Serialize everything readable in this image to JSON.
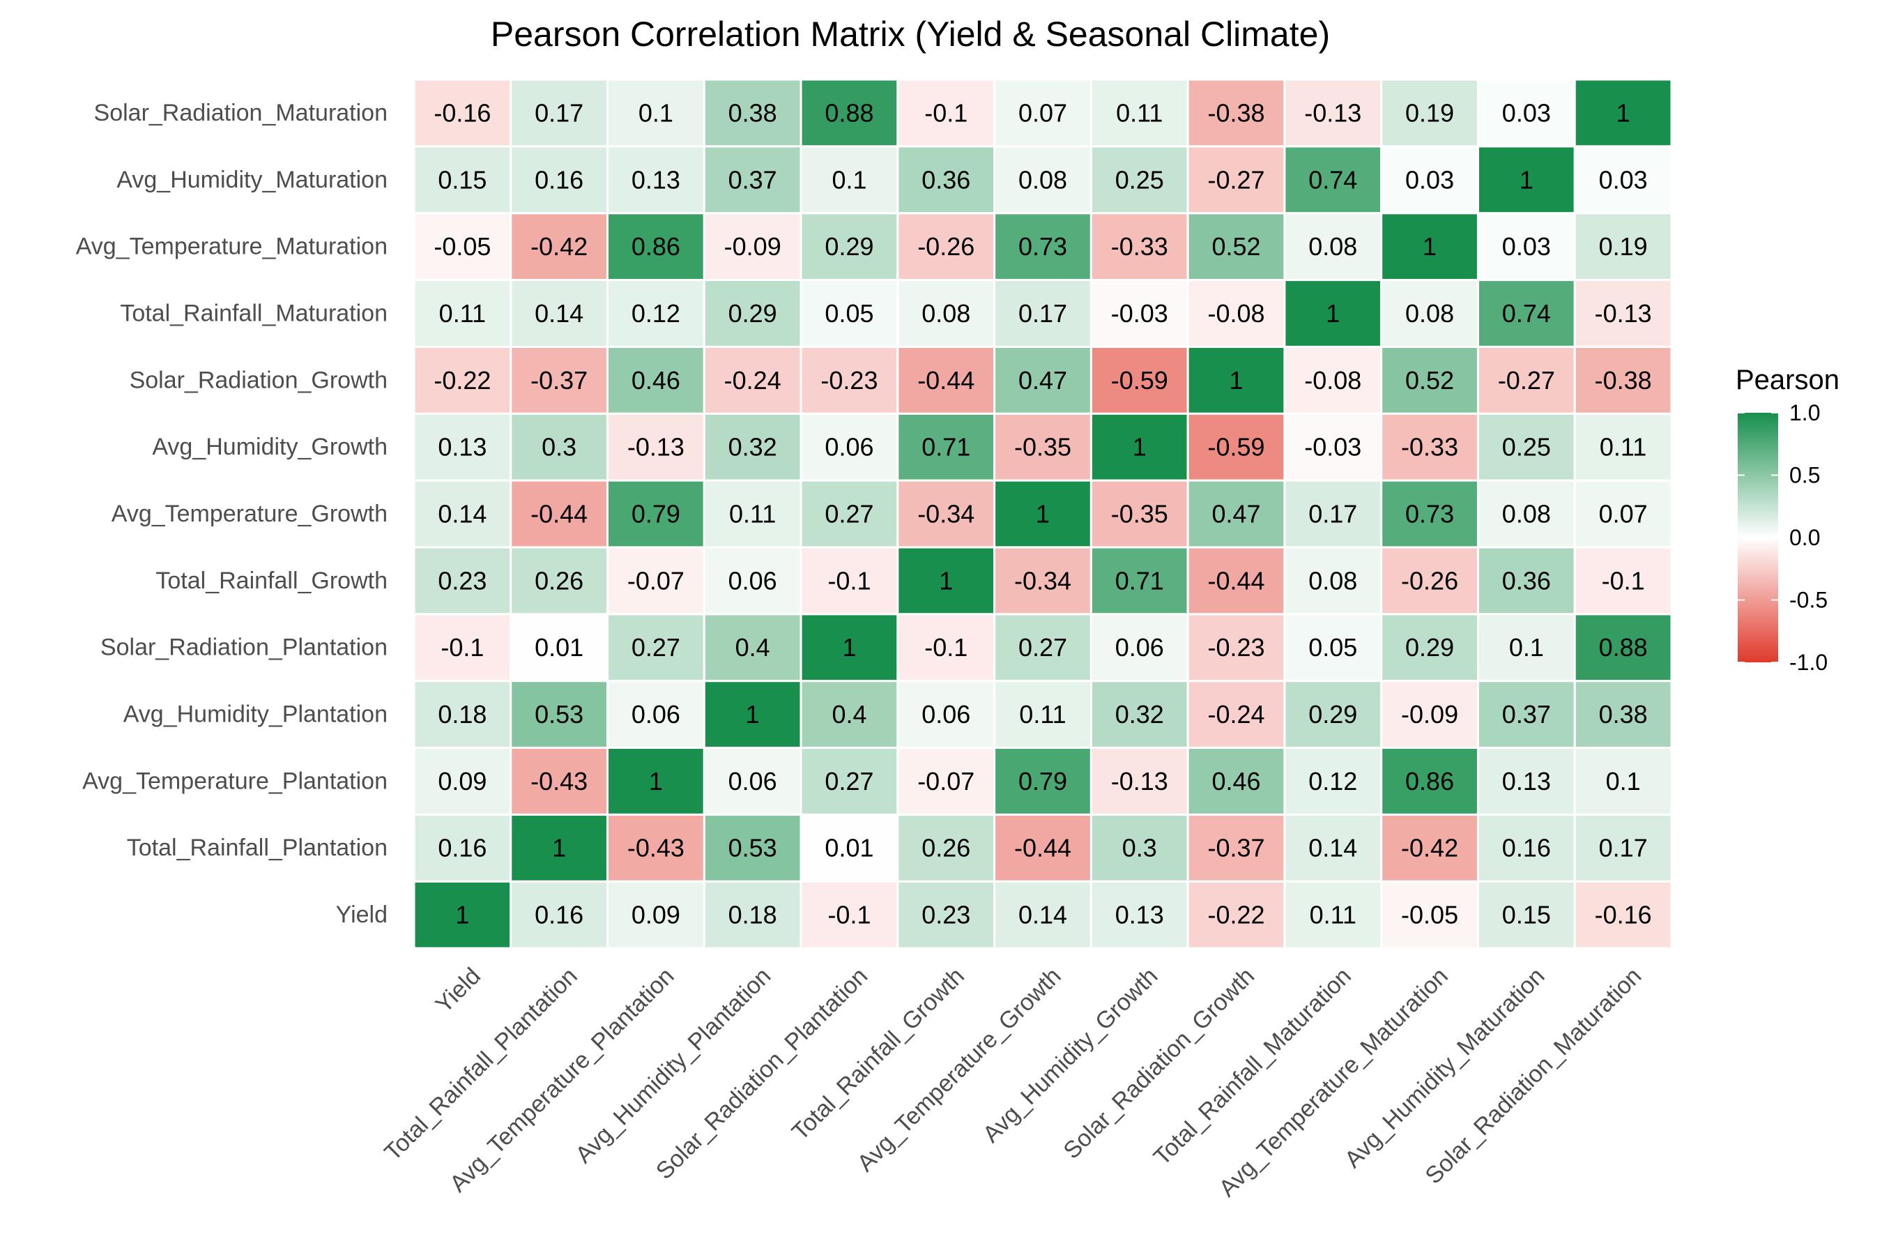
{
  "chart_data": {
    "type": "heatmap",
    "title": "Pearson Correlation Matrix (Yield & Seasonal Climate)",
    "variables": [
      "Yield",
      "Total_Rainfall_Plantation",
      "Avg_Temperature_Plantation",
      "Avg_Humidity_Plantation",
      "Solar_Radiation_Plantation",
      "Total_Rainfall_Growth",
      "Avg_Temperature_Growth",
      "Avg_Humidity_Growth",
      "Solar_Radiation_Growth",
      "Total_Rainfall_Maturation",
      "Avg_Temperature_Maturation",
      "Avg_Humidity_Maturation",
      "Solar_Radiation_Maturation"
    ],
    "matrix": [
      [
        1,
        0.16,
        0.09,
        0.18,
        -0.1,
        0.23,
        0.14,
        0.13,
        -0.22,
        0.11,
        -0.05,
        0.15,
        -0.16
      ],
      [
        0.16,
        1,
        -0.43,
        0.53,
        0.01,
        0.26,
        -0.44,
        0.3,
        -0.37,
        0.14,
        -0.42,
        0.16,
        0.17
      ],
      [
        0.09,
        -0.43,
        1,
        0.06,
        0.27,
        -0.07,
        0.79,
        -0.13,
        0.46,
        0.12,
        0.86,
        0.13,
        0.1
      ],
      [
        0.18,
        0.53,
        0.06,
        1,
        0.4,
        0.06,
        0.11,
        0.32,
        -0.24,
        0.29,
        -0.09,
        0.37,
        0.38
      ],
      [
        -0.1,
        0.01,
        0.27,
        0.4,
        1,
        -0.1,
        0.27,
        0.06,
        -0.23,
        0.05,
        0.29,
        0.1,
        0.88
      ],
      [
        0.23,
        0.26,
        -0.07,
        0.06,
        -0.1,
        1,
        -0.34,
        0.71,
        -0.44,
        0.08,
        -0.26,
        0.36,
        -0.1
      ],
      [
        0.14,
        -0.44,
        0.79,
        0.11,
        0.27,
        -0.34,
        1,
        -0.35,
        0.47,
        0.17,
        0.73,
        0.08,
        0.07
      ],
      [
        0.13,
        0.3,
        -0.13,
        0.32,
        0.06,
        0.71,
        -0.35,
        1,
        -0.59,
        -0.03,
        -0.33,
        0.25,
        0.11
      ],
      [
        -0.22,
        -0.37,
        0.46,
        -0.24,
        -0.23,
        -0.44,
        0.47,
        -0.59,
        1,
        -0.08,
        0.52,
        -0.27,
        -0.38
      ],
      [
        0.11,
        0.14,
        0.12,
        0.29,
        0.05,
        0.08,
        0.17,
        -0.03,
        -0.08,
        1,
        0.08,
        0.74,
        -0.13
      ],
      [
        -0.05,
        -0.42,
        0.86,
        -0.09,
        0.29,
        -0.26,
        0.73,
        -0.33,
        0.52,
        0.08,
        1,
        0.03,
        0.19
      ],
      [
        0.15,
        0.16,
        0.13,
        0.37,
        0.1,
        0.36,
        0.08,
        0.25,
        -0.27,
        0.74,
        0.03,
        1,
        0.03
      ],
      [
        -0.16,
        0.17,
        0.1,
        0.38,
        0.88,
        -0.1,
        0.07,
        0.11,
        -0.38,
        -0.13,
        0.19,
        0.03,
        1
      ]
    ],
    "row_order": "bottom-to-top",
    "legend": {
      "title": "Pearson",
      "position": "right",
      "range": [
        -1.0,
        1.0
      ],
      "ticks": [
        "1.0",
        "0.5",
        "0.0",
        "-0.5",
        "-1.0"
      ]
    },
    "colors": {
      "low": "#e0392b",
      "mid": "#ffffff",
      "high": "#188f4c",
      "gridline": "#ffffff"
    }
  }
}
